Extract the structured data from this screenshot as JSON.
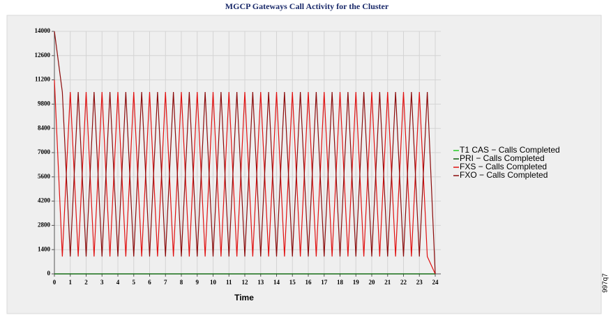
{
  "chart_data": {
    "type": "line",
    "title": "MGCP Gateways Call Activity for the Cluster",
    "x_label": "Time",
    "figure_id": "997q7",
    "x": [
      0,
      0.5,
      1,
      1.5,
      2,
      2.5,
      3,
      3.5,
      4,
      4.5,
      5,
      5.5,
      6,
      6.5,
      7,
      7.5,
      8,
      8.5,
      9,
      9.5,
      10,
      10.5,
      11,
      11.5,
      12,
      12.5,
      13,
      13.5,
      14,
      14.5,
      15,
      15.5,
      16,
      16.5,
      17,
      17.5,
      18,
      18.5,
      19,
      19.5,
      20,
      20.5,
      21,
      21.5,
      22,
      22.5,
      23,
      23.5,
      24
    ],
    "series": [
      {
        "name": "T1 CAS − Calls Completed",
        "color": "#22cc22",
        "values": [
          0,
          0,
          0,
          0,
          0,
          0,
          0,
          0,
          0,
          0,
          0,
          0,
          0,
          0,
          0,
          0,
          0,
          0,
          0,
          0,
          0,
          0,
          0,
          0,
          0,
          0,
          0,
          0,
          0,
          0,
          0,
          0,
          0,
          0,
          0,
          0,
          0,
          0,
          0,
          0,
          0,
          0,
          0,
          0,
          0,
          0,
          0,
          0,
          0
        ]
      },
      {
        "name": "PRI − Calls Completed",
        "color": "#0a5a0a",
        "values": [
          0,
          0,
          0,
          0,
          0,
          0,
          0,
          0,
          0,
          0,
          0,
          0,
          0,
          0,
          0,
          0,
          0,
          0,
          0,
          0,
          0,
          0,
          0,
          0,
          0,
          0,
          0,
          0,
          0,
          0,
          0,
          0,
          0,
          0,
          0,
          0,
          0,
          0,
          0,
          0,
          0,
          0,
          0,
          0,
          0,
          0,
          0,
          0,
          0
        ]
      },
      {
        "name": "FXS − Calls Completed",
        "color": "#e01010",
        "values": [
          11200,
          1000,
          10500,
          1000,
          10500,
          1000,
          10500,
          1000,
          10500,
          1000,
          10500,
          1000,
          10500,
          1000,
          10500,
          1000,
          10500,
          1000,
          10500,
          1000,
          10500,
          1000,
          10500,
          1000,
          10500,
          1000,
          10500,
          1000,
          10500,
          1000,
          10500,
          1000,
          10500,
          1000,
          10500,
          1000,
          10500,
          1000,
          10500,
          1000,
          10500,
          1000,
          10500,
          1000,
          10500,
          1000,
          10500,
          1000,
          0
        ]
      },
      {
        "name": "FXO − Calls Completed",
        "color": "#8b0a0a",
        "values": [
          14000,
          10500,
          1000,
          10500,
          1000,
          10500,
          1000,
          10500,
          1000,
          10500,
          1000,
          10500,
          1000,
          10500,
          1000,
          10500,
          1000,
          10500,
          1000,
          10500,
          1000,
          10500,
          1000,
          10500,
          1000,
          10500,
          1000,
          10500,
          1000,
          10500,
          1000,
          10500,
          1000,
          10500,
          1000,
          10500,
          1000,
          10500,
          1000,
          10500,
          1000,
          10500,
          1000,
          10500,
          1000,
          10500,
          1000,
          10500,
          0
        ]
      }
    ],
    "xlim": [
      0,
      24
    ],
    "xticks": [
      0,
      1,
      2,
      3,
      4,
      5,
      6,
      7,
      8,
      9,
      10,
      11,
      12,
      13,
      14,
      15,
      16,
      17,
      18,
      19,
      20,
      21,
      22,
      23,
      24
    ],
    "ylim": [
      0,
      14000
    ],
    "yticks": [
      0,
      1400,
      2800,
      4200,
      5600,
      7000,
      8400,
      9800,
      11200,
      12600,
      14000
    ],
    "grid": true,
    "legend": "right"
  }
}
